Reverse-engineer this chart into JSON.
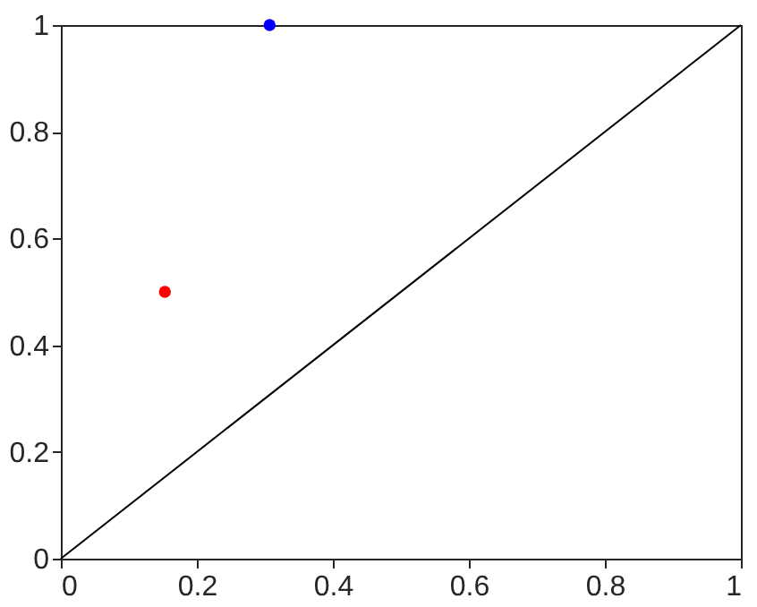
{
  "chart_data": {
    "type": "scatter",
    "series": [
      {
        "type": "line",
        "color": "#000000",
        "x": [
          0,
          1
        ],
        "values": [
          0,
          1
        ],
        "marker": "none"
      },
      {
        "color": "#ff0000",
        "x": [
          0.153
        ],
        "values": [
          0.5
        ]
      },
      {
        "color": "#0000ff",
        "x": [
          0.307
        ],
        "values": [
          1
        ]
      }
    ],
    "marker": "circle",
    "xlim": [
      0,
      1
    ],
    "ylim": [
      0,
      1
    ],
    "xticks": [
      0,
      0.2,
      0.4,
      0.6,
      0.8,
      1
    ],
    "yticks": [
      0,
      0.2,
      0.4,
      0.6,
      0.8,
      1
    ],
    "grid": false
  }
}
